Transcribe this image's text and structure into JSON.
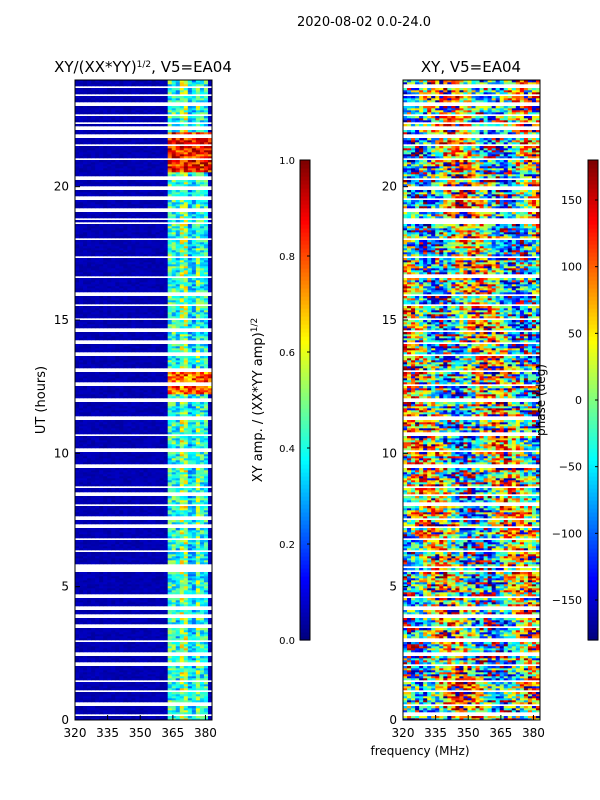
{
  "figure_title": "2020-08-02 0.0-24.0",
  "chart_data": [
    {
      "type": "heatmap",
      "title_main": "XY/(XX*YY)",
      "title_sup": "1/2",
      "title_rest": ", V5=EA04",
      "xlabel": "",
      "ylabel": "UT (hours)",
      "xlim": [
        320,
        383
      ],
      "ylim": [
        0,
        24
      ],
      "xticks": [
        320,
        335,
        350,
        365,
        380
      ],
      "yticks": [
        0,
        5,
        10,
        15,
        20
      ],
      "signal_bands_mhz": [
        {
          "center": 364.5,
          "strength": 0.45
        },
        {
          "center": 367.5,
          "strength": 0.38
        },
        {
          "center": 370.5,
          "strength": 0.55
        },
        {
          "center": 373.5,
          "strength": 0.35
        },
        {
          "center": 376.5,
          "strength": 0.5
        },
        {
          "center": 379.5,
          "strength": 0.42
        }
      ],
      "flagged_hours": [
        0.15,
        0.55,
        1.1,
        1.45,
        2.05,
        2.4,
        2.95,
        3.5,
        3.85,
        4.15,
        4.6,
        5.55,
        5.7,
        6.3,
        6.75,
        7.2,
        7.55,
        8.05,
        8.45,
        8.75,
        9.5,
        10.05,
        10.7,
        11.3,
        11.95,
        12.55,
        13.1,
        13.7,
        14.15,
        14.55,
        15.05,
        15.55,
        15.95,
        16.6,
        17.35,
        18.05,
        18.6,
        18.75,
        19.05,
        19.55,
        19.9,
        20.25,
        21.05,
        21.55,
        21.85,
        22.15,
        22.35,
        22.65,
        23.05,
        23.45,
        23.75
      ],
      "colorbar": {
        "label_main": "XY amp. / (XX*YY amp)",
        "label_sup": "1/2",
        "range": [
          0.0,
          1.0
        ],
        "ticks": [
          "0.0",
          "0.2",
          "0.4",
          "0.6",
          "0.8",
          "1.0"
        ],
        "tick_values": [
          0.0,
          0.2,
          0.4,
          0.6,
          0.8,
          1.0
        ]
      }
    },
    {
      "type": "heatmap",
      "title": "XY, V5=EA04",
      "xlabel": "frequency (MHz)",
      "ylabel": "",
      "xlim": [
        320,
        383
      ],
      "ylim": [
        0,
        24
      ],
      "xticks": [
        320,
        335,
        350,
        365,
        380
      ],
      "yticks": [
        0,
        5,
        10,
        15,
        20
      ],
      "flagged_hours": [
        0.15,
        0.55,
        1.1,
        1.45,
        2.05,
        2.4,
        2.95,
        3.5,
        3.85,
        4.15,
        4.6,
        5.55,
        5.7,
        6.3,
        6.75,
        7.2,
        7.55,
        8.05,
        8.45,
        8.75,
        9.5,
        10.05,
        10.7,
        11.3,
        11.95,
        12.55,
        13.1,
        13.7,
        14.15,
        14.55,
        15.05,
        15.55,
        15.95,
        16.6,
        17.35,
        18.05,
        18.6,
        18.75,
        19.05,
        19.55,
        19.9,
        20.25,
        21.05,
        21.55,
        21.85,
        22.15,
        22.35,
        22.65,
        23.05,
        23.45,
        23.75
      ],
      "colorbar": {
        "label": "phase (deg)",
        "range": [
          -180,
          180
        ],
        "ticks": [
          "−150",
          "−100",
          "−50",
          "0",
          "50",
          "100",
          "150"
        ],
        "tick_values": [
          -150,
          -100,
          -50,
          0,
          50,
          100,
          150
        ]
      }
    }
  ]
}
